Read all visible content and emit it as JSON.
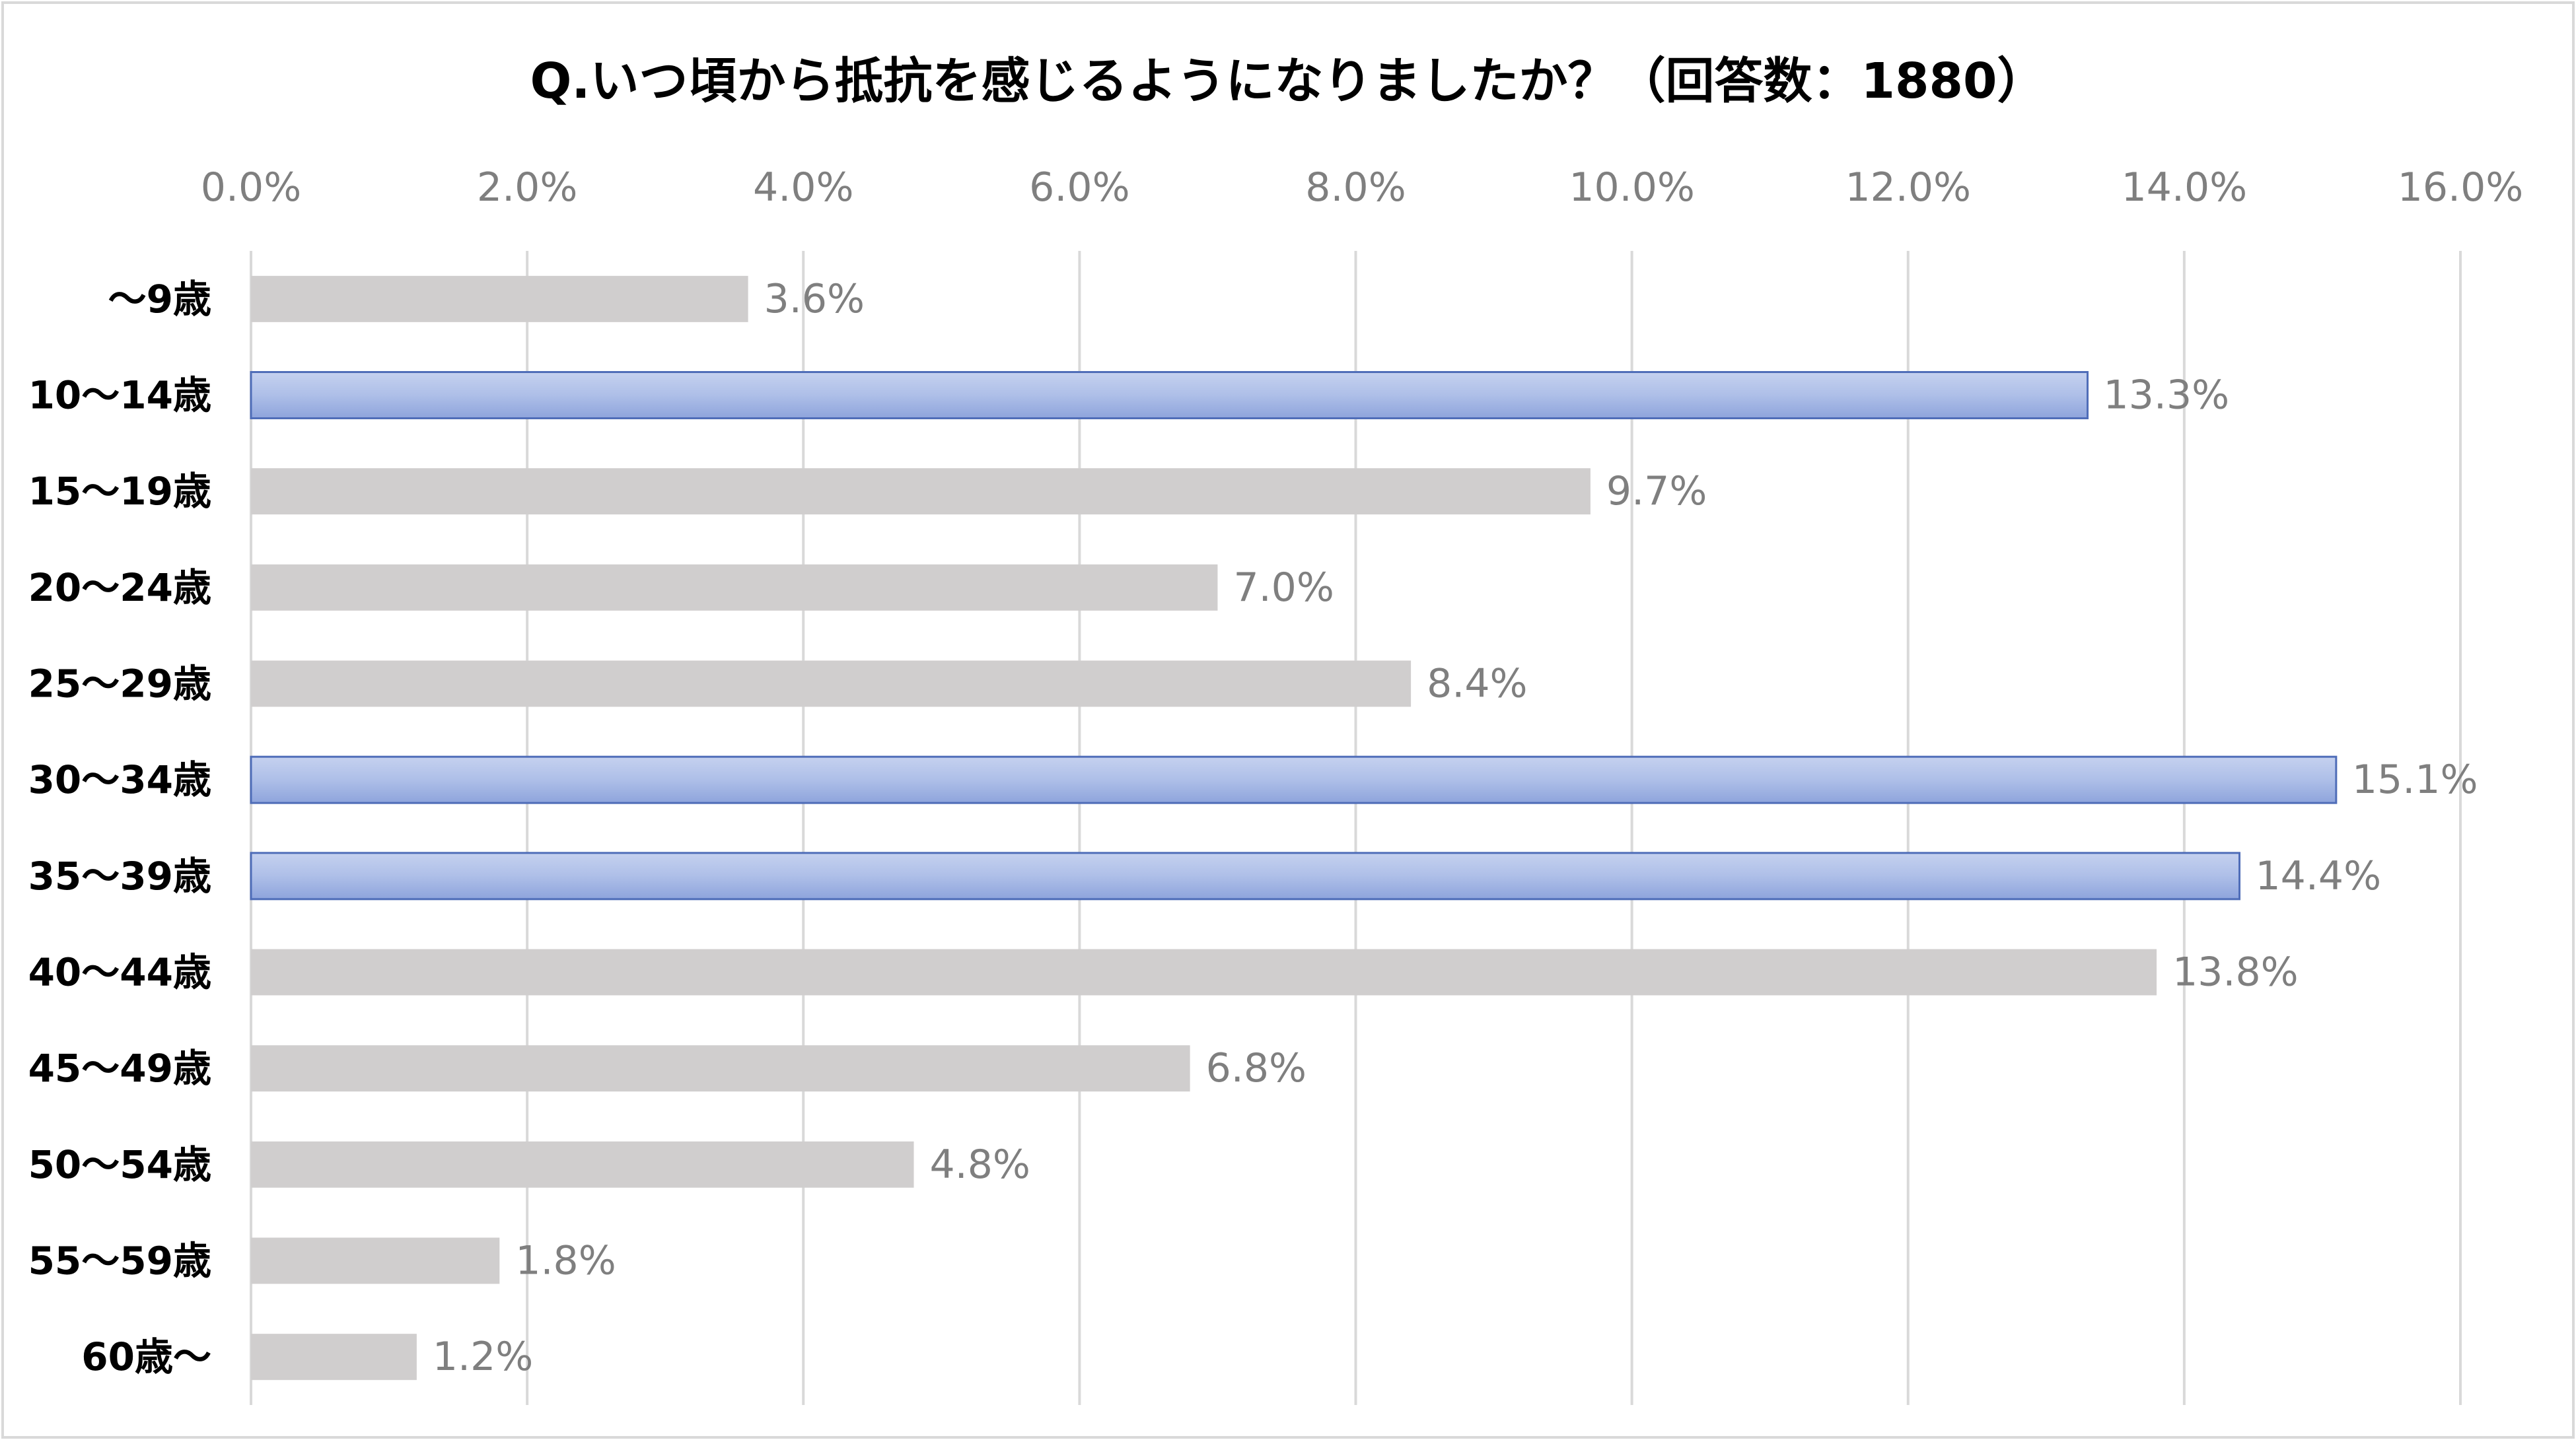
{
  "chart_data": {
    "type": "bar",
    "orientation": "horizontal",
    "title": "Q.いつ頃から抵抗を感じるようになりましたか？（回答数：1880）",
    "xlabel": "",
    "ylabel": "",
    "xlim": [
      0,
      16
    ],
    "ticks": [
      0,
      2,
      4,
      6,
      8,
      10,
      12,
      14,
      16
    ],
    "tick_labels": [
      "0.0%",
      "2.0%",
      "4.0%",
      "6.0%",
      "8.0%",
      "10.0%",
      "12.0%",
      "14.0%",
      "16.0%"
    ],
    "grid": true,
    "legend": "none",
    "categories": [
      "～9歳",
      "10～14歳",
      "15～19歳",
      "20～24歳",
      "25～29歳",
      "30～34歳",
      "35～39歳",
      "40～44歳",
      "45～49歳",
      "50～54歳",
      "55～59歳",
      "60歳～"
    ],
    "values": [
      3.6,
      13.3,
      9.7,
      7.0,
      8.4,
      15.1,
      14.4,
      13.8,
      6.8,
      4.8,
      1.8,
      1.2
    ],
    "data_labels": [
      "3.6%",
      "13.3%",
      "9.7%",
      "7.0%",
      "8.4%",
      "15.1%",
      "14.4%",
      "13.8%",
      "6.8%",
      "4.8%",
      "1.8%",
      "1.2%"
    ],
    "highlighted": [
      false,
      true,
      false,
      false,
      false,
      true,
      true,
      false,
      false,
      false,
      false,
      false
    ],
    "colors": {
      "default_bar": "#d0cece",
      "highlight_top": "#c5d1ef",
      "highlight_mid": "#aebfe8",
      "highlight_bottom": "#8ea4dc",
      "highlight_border": "#4f6db8"
    }
  }
}
